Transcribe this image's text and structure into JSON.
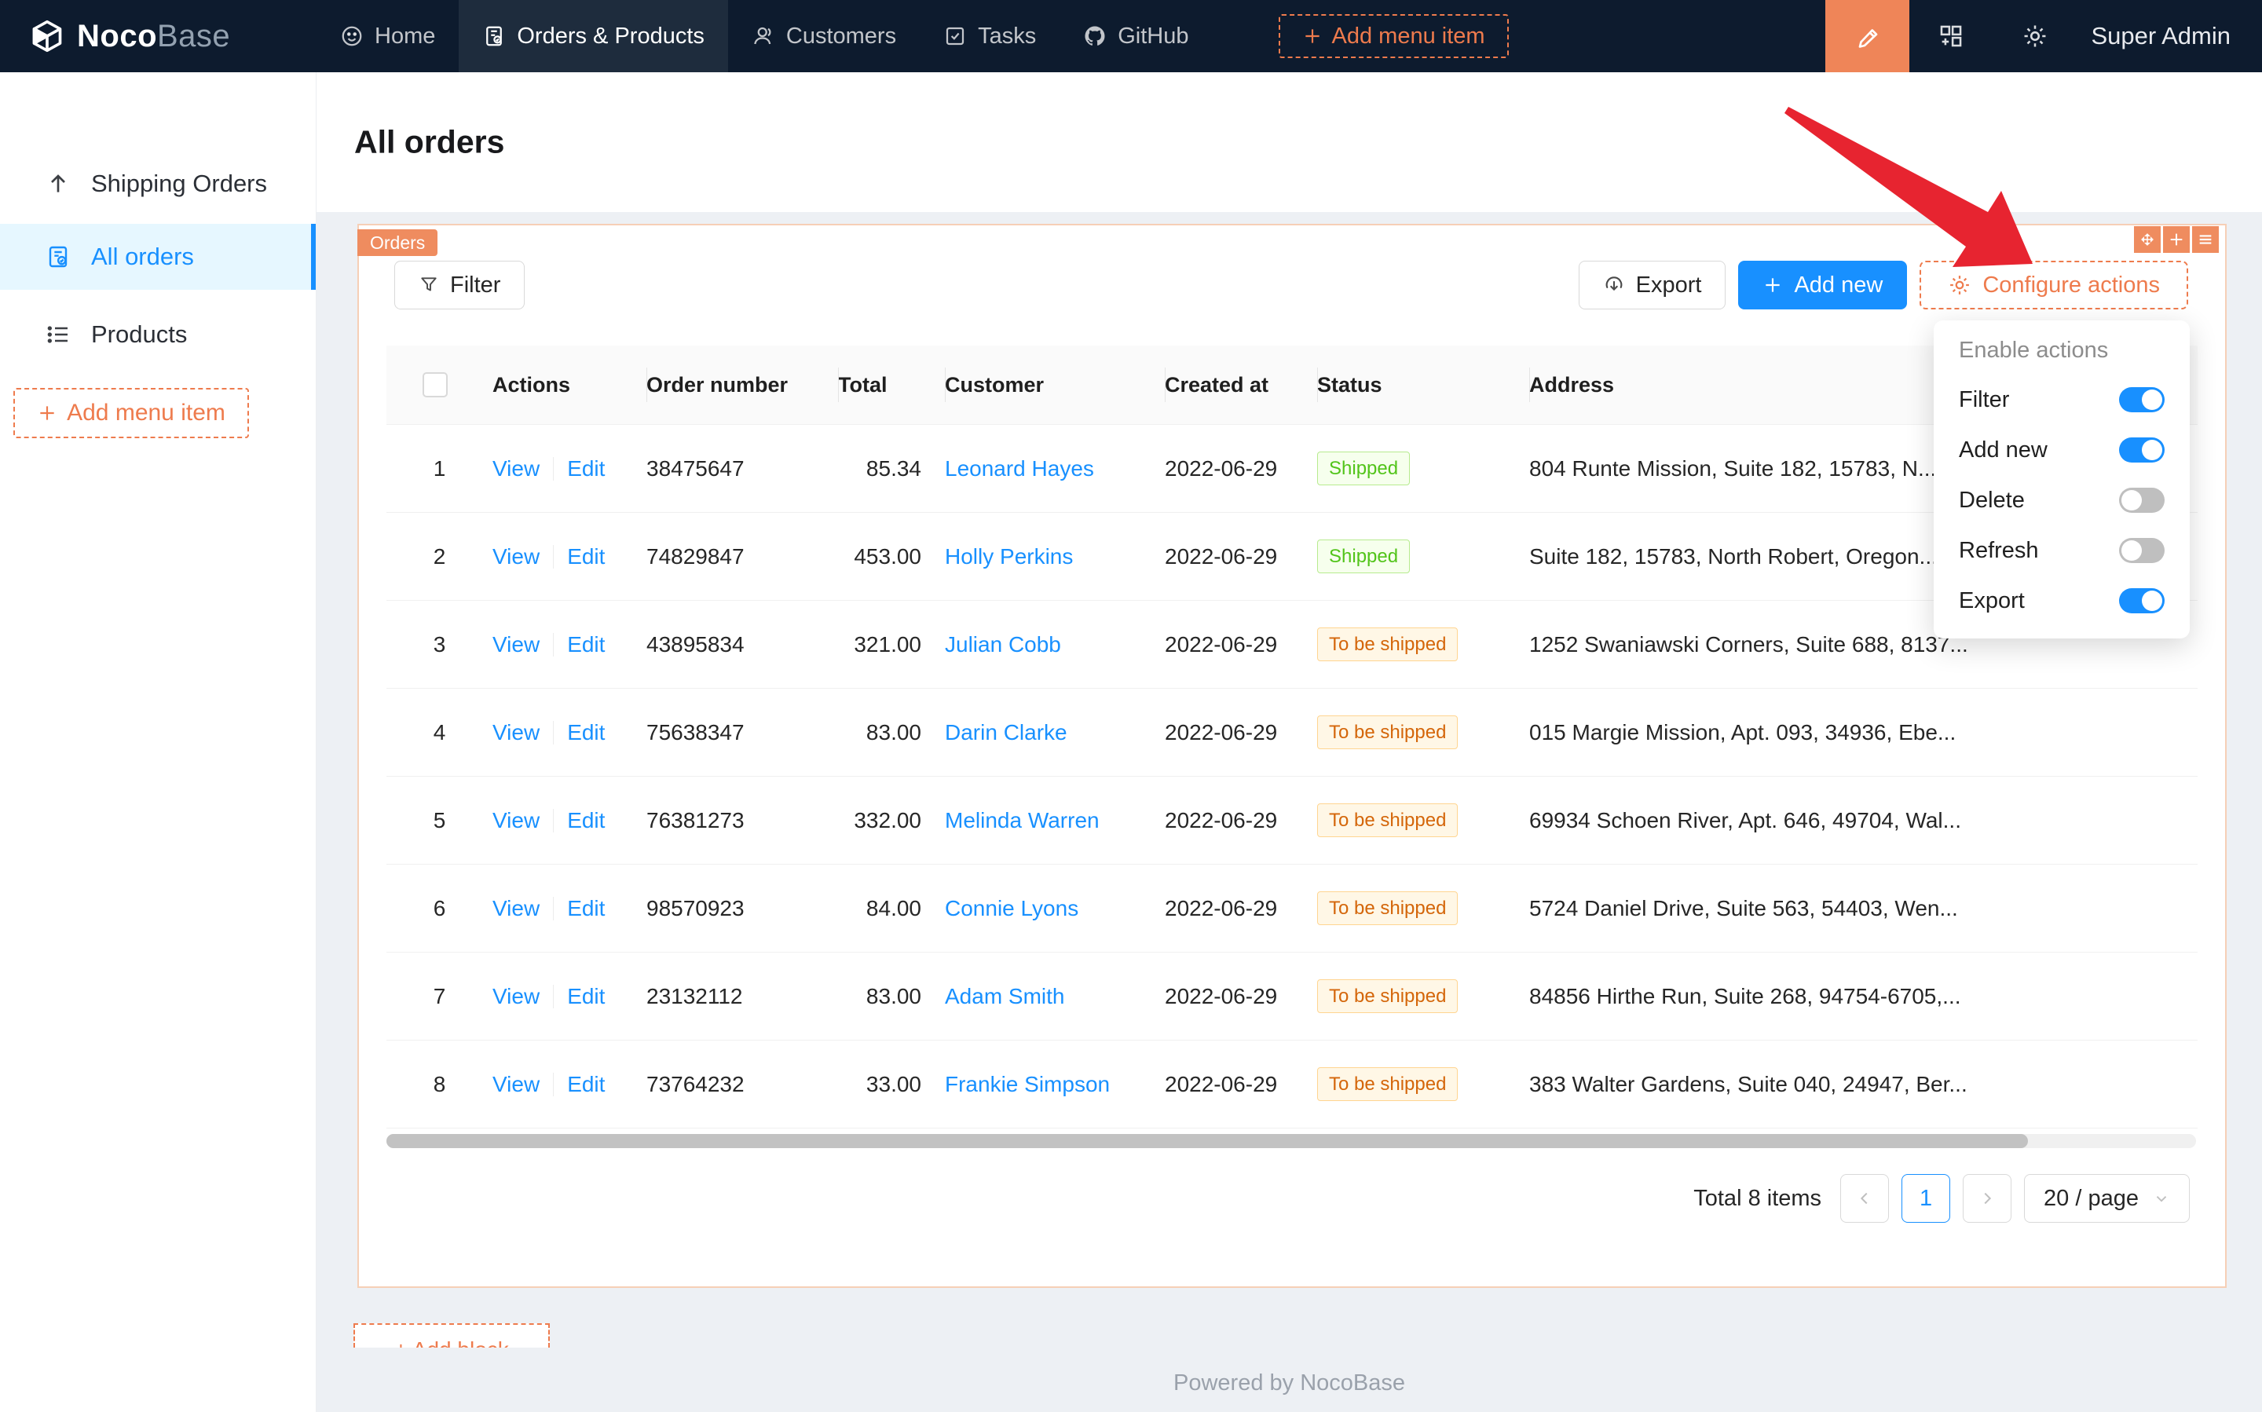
{
  "navbar": {
    "brand_bold": "Noco",
    "brand_light": "Base",
    "items": [
      {
        "label": "Home",
        "icon": "smile-icon",
        "active": false
      },
      {
        "label": "Orders & Products",
        "icon": "orders-icon",
        "active": true
      },
      {
        "label": "Customers",
        "icon": "user-icon",
        "active": false
      },
      {
        "label": "Tasks",
        "icon": "check-square-icon",
        "active": false
      },
      {
        "label": "GitHub",
        "icon": "github-icon",
        "active": false
      }
    ],
    "add_menu_item": "Add menu item",
    "user": "Super Admin"
  },
  "sidebar": {
    "items": [
      {
        "label": "Shipping Orders",
        "icon": "arrow-up-icon"
      },
      {
        "label": "All orders",
        "icon": "file-check-icon"
      },
      {
        "label": "Products",
        "icon": "list-icon"
      }
    ],
    "add_menu_item": "Add menu item"
  },
  "page": {
    "title": "All orders",
    "footer": "Powered by NocoBase",
    "add_block": "Add block"
  },
  "block": {
    "tag": "Orders",
    "toolbar": {
      "filter": "Filter",
      "export": "Export",
      "add_new": "Add new",
      "configure_actions": "Configure actions"
    }
  },
  "dropdown": {
    "header": "Enable actions",
    "items": [
      {
        "label": "Filter",
        "on": true
      },
      {
        "label": "Add new",
        "on": true
      },
      {
        "label": "Delete",
        "on": false
      },
      {
        "label": "Refresh",
        "on": false
      },
      {
        "label": "Export",
        "on": true
      }
    ]
  },
  "table": {
    "columns": [
      "Actions",
      "Order number",
      "Total",
      "Customer",
      "Created at",
      "Status",
      "Address"
    ],
    "links": {
      "view": "View",
      "edit": "Edit"
    },
    "rows": [
      {
        "index": "1",
        "order_number": "38475647",
        "total": "85.34",
        "customer": "Leonard Hayes",
        "created_at": "2022-06-29",
        "status": "Shipped",
        "status_type": "shipped",
        "address": "804 Runte Mission, Suite 182, 15783, N..."
      },
      {
        "index": "2",
        "order_number": "74829847",
        "total": "453.00",
        "customer": "Holly Perkins",
        "created_at": "2022-06-29",
        "status": "Shipped",
        "status_type": "shipped",
        "address": "Suite 182, 15783, North Robert, Oregon..."
      },
      {
        "index": "3",
        "order_number": "43895834",
        "total": "321.00",
        "customer": "Julian Cobb",
        "created_at": "2022-06-29",
        "status": "To be shipped",
        "status_type": "to_be_shipped",
        "address": "1252 Swaniawski Corners, Suite 688, 8137..."
      },
      {
        "index": "4",
        "order_number": "75638347",
        "total": "83.00",
        "customer": "Darin Clarke",
        "created_at": "2022-06-29",
        "status": "To be shipped",
        "status_type": "to_be_shipped",
        "address": "015 Margie Mission, Apt. 093, 34936, Ebe..."
      },
      {
        "index": "5",
        "order_number": "76381273",
        "total": "332.00",
        "customer": "Melinda Warren",
        "created_at": "2022-06-29",
        "status": "To be shipped",
        "status_type": "to_be_shipped",
        "address": "69934 Schoen River, Apt. 646, 49704, Wal..."
      },
      {
        "index": "6",
        "order_number": "98570923",
        "total": "84.00",
        "customer": "Connie Lyons",
        "created_at": "2022-06-29",
        "status": "To be shipped",
        "status_type": "to_be_shipped",
        "address": "5724 Daniel Drive, Suite 563, 54403, Wen..."
      },
      {
        "index": "7",
        "order_number": "23132112",
        "total": "83.00",
        "customer": "Adam Smith",
        "created_at": "2022-06-29",
        "status": "To be shipped",
        "status_type": "to_be_shipped",
        "address": "84856 Hirthe Run, Suite 268, 94754-6705,..."
      },
      {
        "index": "8",
        "order_number": "73764232",
        "total": "33.00",
        "customer": "Frankie Simpson",
        "created_at": "2022-06-29",
        "status": "To be shipped",
        "status_type": "to_be_shipped",
        "address": "383 Walter Gardens, Suite 040, 24947, Ber..."
      }
    ]
  },
  "pagination": {
    "total": "Total 8 items",
    "page": "1",
    "page_size": "20 / page"
  },
  "colors": {
    "accent_orange": "#ee7b4d",
    "primary_blue": "#1890ff",
    "status_green": "#52c41a",
    "status_orange": "#d4660a",
    "arrow_red": "#e72430"
  }
}
